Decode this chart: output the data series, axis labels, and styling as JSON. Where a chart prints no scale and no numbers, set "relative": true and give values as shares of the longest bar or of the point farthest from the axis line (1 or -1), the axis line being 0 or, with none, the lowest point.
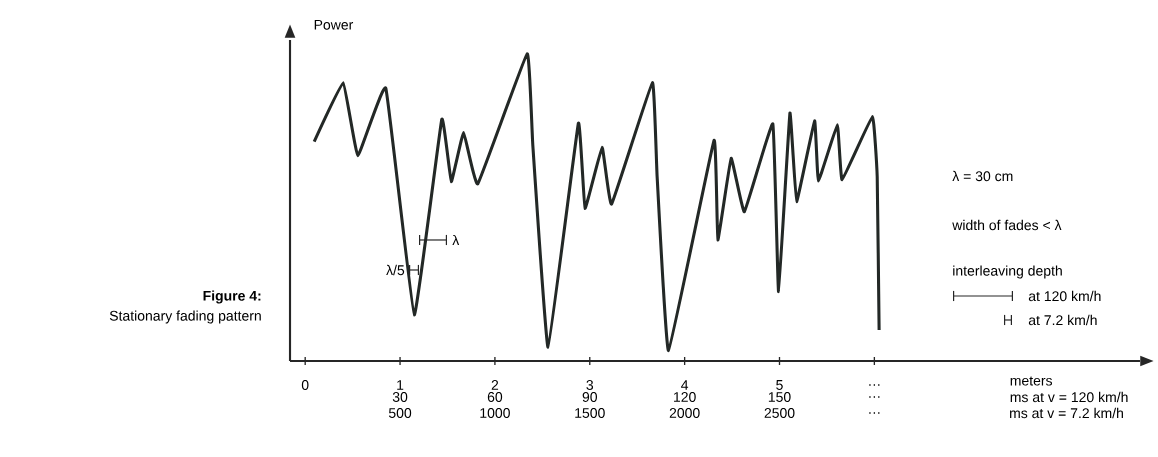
{
  "chart_data": {
    "type": "line",
    "relative": true,
    "title": "**Figure 4:**",
    "subtitle": "Stationary fading pattern",
    "ylabel": "Power",
    "xlabel": "meters",
    "x2label": "ms at v = 120 km/h",
    "xlim": [
      -0.16,
      8.8
    ],
    "xticks": [
      0,
      1,
      2,
      3,
      4,
      5,
      {
        "value": 6,
        "label": "…"
      }
    ],
    "x2lim": [
      -4.8,
      264
    ],
    "x2ticks": [
      30,
      60,
      90,
      120,
      150,
      {
        "value": 180,
        "label": "…"
      }
    ],
    "tick_labels": "x",
    "x": [
      0.095,
      0.4,
      0.555,
      0.85,
      1.15,
      1.44,
      1.54,
      1.67,
      1.82,
      2.34,
      2.4,
      2.56,
      2.88,
      2.95,
      3.13,
      3.23,
      3.66,
      3.71,
      3.83,
      4.31,
      4.35,
      4.49,
      4.63,
      4.93,
      4.99,
      5.11,
      5.18,
      5.37,
      5.41,
      5.61,
      5.66,
      5.98,
      6.03,
      6.05
    ],
    "series": [
      {
        "color": "#232826",
        "values": [
          0.714,
          0.906,
          0.668,
          0.888,
          0.15,
          0.787,
          0.584,
          0.744,
          0.577,
          1.0,
          0.7,
          0.045,
          0.774,
          0.497,
          0.696,
          0.511,
          0.906,
          0.6,
          0.034,
          0.718,
          0.394,
          0.66,
          0.486,
          0.772,
          0.226,
          0.807,
          0.519,
          0.782,
          0.586,
          0.769,
          0.59,
          0.796,
          0.6,
          0.101
        ]
      }
    ],
    "annotations": [
      "λ = 30 cm",
      "width of fades < λ",
      "interleaving depth",
      "at 120 km/h",
      "at 7.2 km/h",
      "λ",
      "λ/5",
      "500",
      "1000",
      "1500",
      "2000",
      "2500",
      "…",
      "ms at v = 7.2 km/h"
    ]
  }
}
